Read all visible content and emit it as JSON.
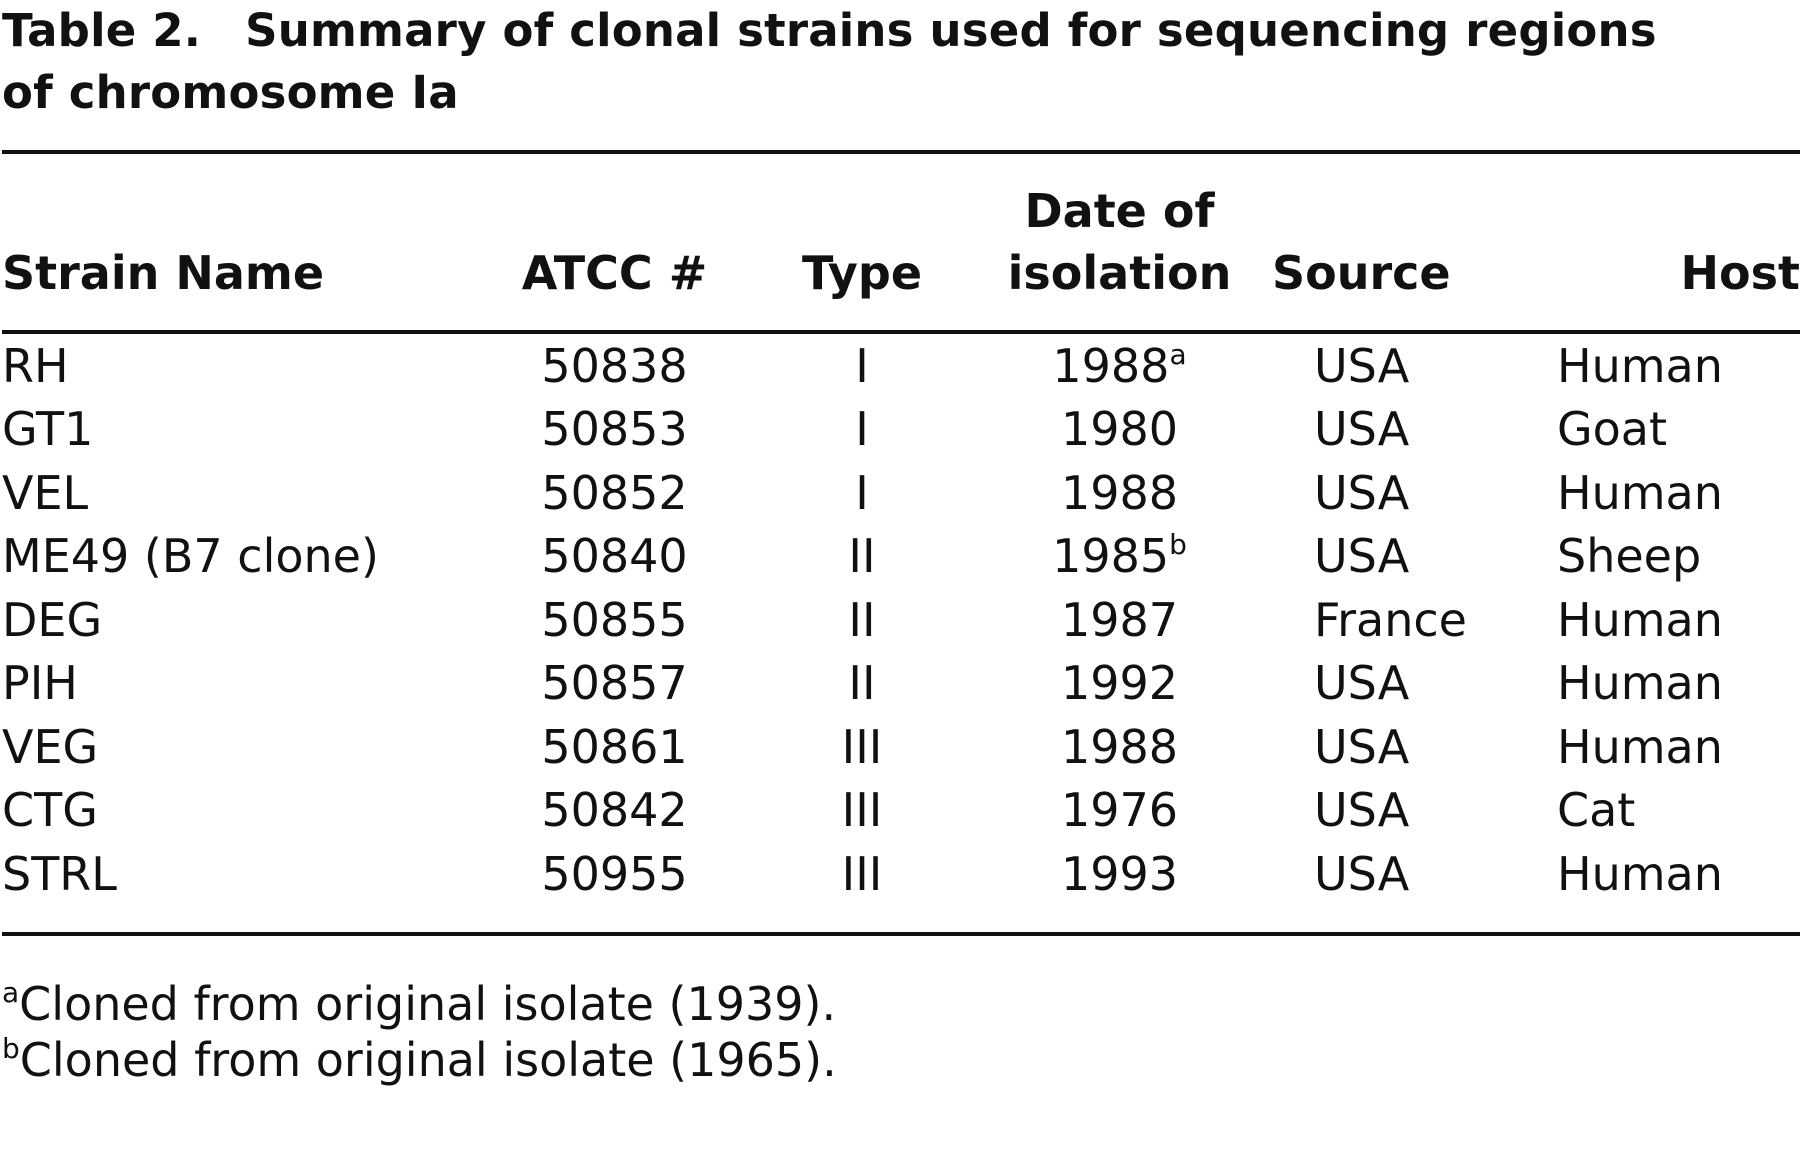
{
  "caption": {
    "label": "Table 2.",
    "title_line1": "Summary of clonal strains used for sequencing regions",
    "title_line2": "of chromosome Ia"
  },
  "table": {
    "headers": {
      "strain_name": "Strain Name",
      "atcc": "ATCC #",
      "type": "Type",
      "date_line1": "Date of",
      "date_line2": "isolation",
      "source": "Source",
      "host": "Host"
    },
    "rows": [
      {
        "strain": "RH",
        "atcc": "50838",
        "type": "I",
        "date": "1988",
        "date_note": "a",
        "source": "USA",
        "host": "Human"
      },
      {
        "strain": "GT1",
        "atcc": "50853",
        "type": "I",
        "date": "1980",
        "date_note": "",
        "source": "USA",
        "host": "Goat"
      },
      {
        "strain": "VEL",
        "atcc": "50852",
        "type": "I",
        "date": "1988",
        "date_note": "",
        "source": "USA",
        "host": "Human"
      },
      {
        "strain": "ME49 (B7 clone)",
        "atcc": "50840",
        "type": "II",
        "date": "1985",
        "date_note": "b",
        "source": "USA",
        "host": "Sheep"
      },
      {
        "strain": "DEG",
        "atcc": "50855",
        "type": "II",
        "date": "1987",
        "date_note": "",
        "source": "France",
        "host": "Human"
      },
      {
        "strain": "PIH",
        "atcc": "50857",
        "type": "II",
        "date": "1992",
        "date_note": "",
        "source": "USA",
        "host": "Human"
      },
      {
        "strain": "VEG",
        "atcc": "50861",
        "type": "III",
        "date": "1988",
        "date_note": "",
        "source": "USA",
        "host": "Human"
      },
      {
        "strain": "CTG",
        "atcc": "50842",
        "type": "III",
        "date": "1976",
        "date_note": "",
        "source": "USA",
        "host": "Cat"
      },
      {
        "strain": "STRL",
        "atcc": "50955",
        "type": "III",
        "date": "1993",
        "date_note": "",
        "source": "USA",
        "host": "Human"
      }
    ]
  },
  "footnotes": [
    {
      "mark": "a",
      "text": "Cloned from original isolate (1939)."
    },
    {
      "mark": "b",
      "text": "Cloned from original isolate (1965)."
    }
  ]
}
